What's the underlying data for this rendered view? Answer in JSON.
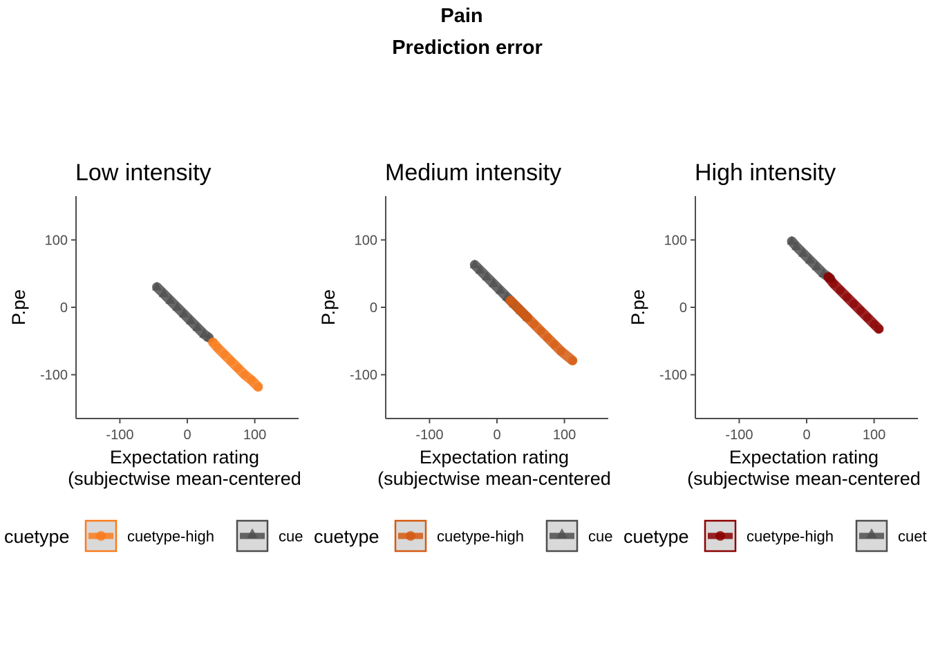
{
  "figure": {
    "title": "Pain",
    "subtitle": "Prediction error"
  },
  "chart_data": [
    {
      "type": "scatter",
      "title": "Low intensity",
      "xlabel_line1": "Expectation rating",
      "xlabel_line2": "(subjectwise mean-centered",
      "ylabel": "P.pe",
      "xlim": [
        -165,
        165
      ],
      "ylim": [
        -165,
        165
      ],
      "xticks": [
        -100,
        0,
        100
      ],
      "yticks": [
        -100,
        0,
        100
      ],
      "legend": {
        "title": "cuetype",
        "entries": [
          "cuetype-high",
          "cue"
        ],
        "placement": "bottom"
      },
      "series": [
        {
          "name": "cuetype-low",
          "color": "#4d4d4d",
          "marker": "triangle",
          "x": [
            -45,
            -35,
            -25,
            -15,
            -5,
            5,
            15,
            25,
            32
          ],
          "y": [
            30,
            20,
            10,
            0,
            -10,
            -20,
            -30,
            -40,
            -45
          ]
        },
        {
          "name": "cuetype-high",
          "color": "#f97b1c",
          "marker": "circle",
          "x": [
            38,
            45,
            55,
            65,
            75,
            85,
            95,
            105
          ],
          "y": [
            -52,
            -60,
            -70,
            -80,
            -90,
            -100,
            -108,
            -118
          ]
        }
      ]
    },
    {
      "type": "scatter",
      "title": "Medium intensity",
      "xlabel_line1": "Expectation rating",
      "xlabel_line2": "(subjectwise mean-centered",
      "ylabel": "P.pe",
      "xlim": [
        -165,
        165
      ],
      "ylim": [
        -165,
        165
      ],
      "xticks": [
        -100,
        0,
        100
      ],
      "yticks": [
        -100,
        0,
        100
      ],
      "legend": {
        "title": "cuetype",
        "entries": [
          "cuetype-high",
          "cue"
        ],
        "placement": "bottom"
      },
      "series": [
        {
          "name": "cuetype-low",
          "color": "#4d4d4d",
          "marker": "triangle",
          "x": [
            -33,
            -25,
            -15,
            -5,
            5,
            15,
            25,
            35,
            45
          ],
          "y": [
            63,
            55,
            45,
            35,
            25,
            15,
            5,
            -5,
            -15
          ]
        },
        {
          "name": "cuetype-high",
          "color": "#d55a11",
          "marker": "circle",
          "x": [
            20,
            35,
            45,
            55,
            65,
            75,
            85,
            95,
            112
          ],
          "y": [
            10,
            -5,
            -15,
            -25,
            -35,
            -45,
            -55,
            -65,
            -79
          ]
        }
      ]
    },
    {
      "type": "scatter",
      "title": "High intensity",
      "xlabel_line1": "Expectation rating",
      "xlabel_line2": "(subjectwise mean-centered",
      "ylabel": "P.pe",
      "xlim": [
        -165,
        165
      ],
      "ylim": [
        -165,
        165
      ],
      "xticks": [
        -100,
        0,
        100
      ],
      "yticks": [
        -100,
        0,
        100
      ],
      "legend": {
        "title": "cuetype",
        "entries": [
          "cuetype-high",
          "cuet"
        ],
        "placement": "bottom"
      },
      "series": [
        {
          "name": "cuetype-low",
          "color": "#4d4d4d",
          "marker": "triangle",
          "x": [
            -22,
            -15,
            -5,
            5,
            15,
            25,
            35
          ],
          "y": [
            98,
            90,
            80,
            70,
            60,
            50,
            43
          ]
        },
        {
          "name": "cuetype-high",
          "color": "#8b0000",
          "marker": "circle",
          "x": [
            32,
            40,
            50,
            60,
            70,
            80,
            90,
            100,
            107
          ],
          "y": [
            45,
            35,
            25,
            15,
            5,
            -5,
            -15,
            -25,
            -32
          ]
        }
      ]
    }
  ]
}
